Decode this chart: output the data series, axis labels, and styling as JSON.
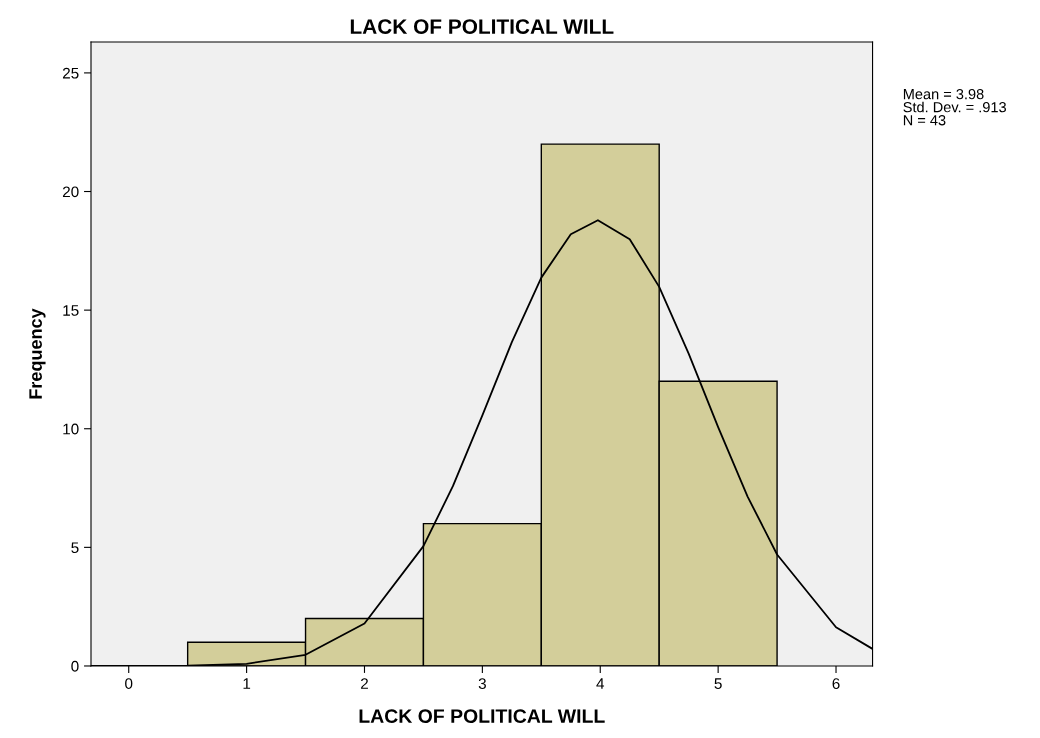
{
  "chart_data": {
    "type": "histogram",
    "title": "LACK OF POLITICAL WILL",
    "xlabel": "LACK OF POLITICAL WILL",
    "ylabel": "Frequency",
    "bins": [
      0.5,
      1.5,
      2.5,
      3.5,
      4.5,
      5.5
    ],
    "values": [
      1,
      2,
      6,
      22,
      12
    ],
    "color": "#d3ce9a",
    "series": [
      {
        "type": "line",
        "color": "#000000",
        "x": [
          -0.32,
          0,
          0.5,
          1,
          1.5,
          2,
          2.5,
          2.75,
          3,
          3.25,
          3.5,
          3.75,
          3.98,
          4.25,
          4.5,
          4.75,
          5,
          5.25,
          5.5,
          6,
          6.31
        ],
        "values": [
          0,
          0,
          0.01,
          0.09,
          0.47,
          1.79,
          5.05,
          7.58,
          10.56,
          13.65,
          16.37,
          18.2,
          18.79,
          17.99,
          15.98,
          13.17,
          10.07,
          7.14,
          4.7,
          1.63,
          0.72
        ]
      }
    ],
    "xlim": [
      -0.32,
      6.31
    ],
    "xticks": [
      0,
      1,
      2,
      3,
      4,
      5,
      6
    ],
    "ylim": [
      0,
      26.3
    ],
    "yticks": [
      0,
      5,
      10,
      15,
      20,
      25
    ],
    "grid": false,
    "legend": false,
    "annotations": [
      "Mean = 3.98",
      "Std. Dev. = .913",
      "N = 43"
    ]
  }
}
